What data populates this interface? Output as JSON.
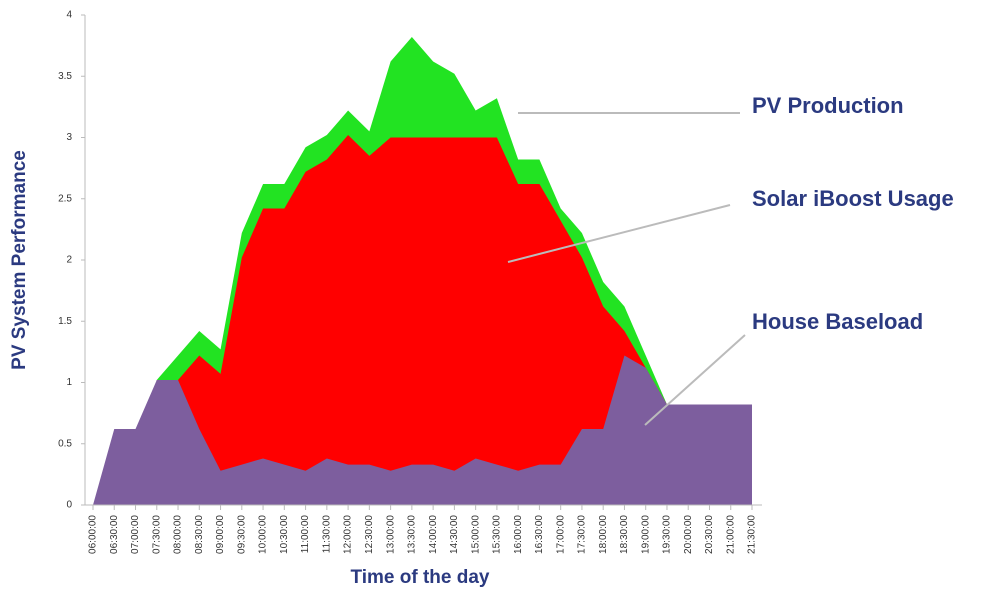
{
  "chart_data": {
    "type": "area",
    "y_label": "PV System Performance",
    "x_label": "Time of the day",
    "categories": [
      "06:00:00",
      "06:30:00",
      "07:00:00",
      "07:30:00",
      "08:00:00",
      "08:30:00",
      "09:00:00",
      "09:30:00",
      "10:00:00",
      "10:30:00",
      "11:00:00",
      "11:30:00",
      "12:00:00",
      "12:30:00",
      "13:00:00",
      "13:30:00",
      "14:00:00",
      "14:30:00",
      "15:00:00",
      "15:30:00",
      "16:00:00",
      "16:30:00",
      "17:00:00",
      "17:30:00",
      "18:00:00",
      "18:30:00",
      "19:00:00",
      "19:30:00",
      "20:00:00",
      "20:30:00",
      "21:00:00",
      "21:30:00"
    ],
    "series": [
      {
        "name": "PV Production",
        "color": "#22e322",
        "values": [
          null,
          null,
          null,
          1.02,
          1.22,
          1.42,
          1.27,
          2.22,
          2.62,
          2.62,
          2.92,
          3.02,
          3.22,
          3.05,
          3.62,
          3.82,
          3.62,
          3.52,
          3.22,
          3.32,
          2.82,
          2.82,
          2.42,
          2.22,
          1.82,
          1.62,
          1.22,
          0.82,
          null,
          null,
          null,
          null
        ]
      },
      {
        "name": "Solar iBoost Usage",
        "color": "#ff0000",
        "values": [
          null,
          null,
          null,
          1.02,
          1.02,
          1.22,
          1.07,
          2.02,
          2.42,
          2.42,
          2.72,
          2.82,
          3.02,
          2.85,
          3.0,
          3.0,
          3.0,
          3.0,
          3.0,
          3.0,
          2.62,
          2.62,
          2.32,
          2.02,
          1.62,
          1.42,
          1.12,
          0.82,
          null,
          null,
          null,
          null
        ]
      },
      {
        "name": "House Baseload",
        "color": "#7d5e9e",
        "values": [
          0,
          0.62,
          0.62,
          1.02,
          1.02,
          0.62,
          0.28,
          0.33,
          0.38,
          0.33,
          0.28,
          0.38,
          0.33,
          0.33,
          0.28,
          0.33,
          0.33,
          0.28,
          0.38,
          0.33,
          0.28,
          0.33,
          0.33,
          0.62,
          0.62,
          1.22,
          1.12,
          0.82,
          0.82,
          0.82,
          0.82,
          0.82
        ]
      }
    ],
    "ylim": [
      0,
      4
    ],
    "yticks": [
      0,
      0.5,
      1,
      1.5,
      2,
      2.5,
      3,
      3.5,
      4
    ],
    "grid": false
  }
}
